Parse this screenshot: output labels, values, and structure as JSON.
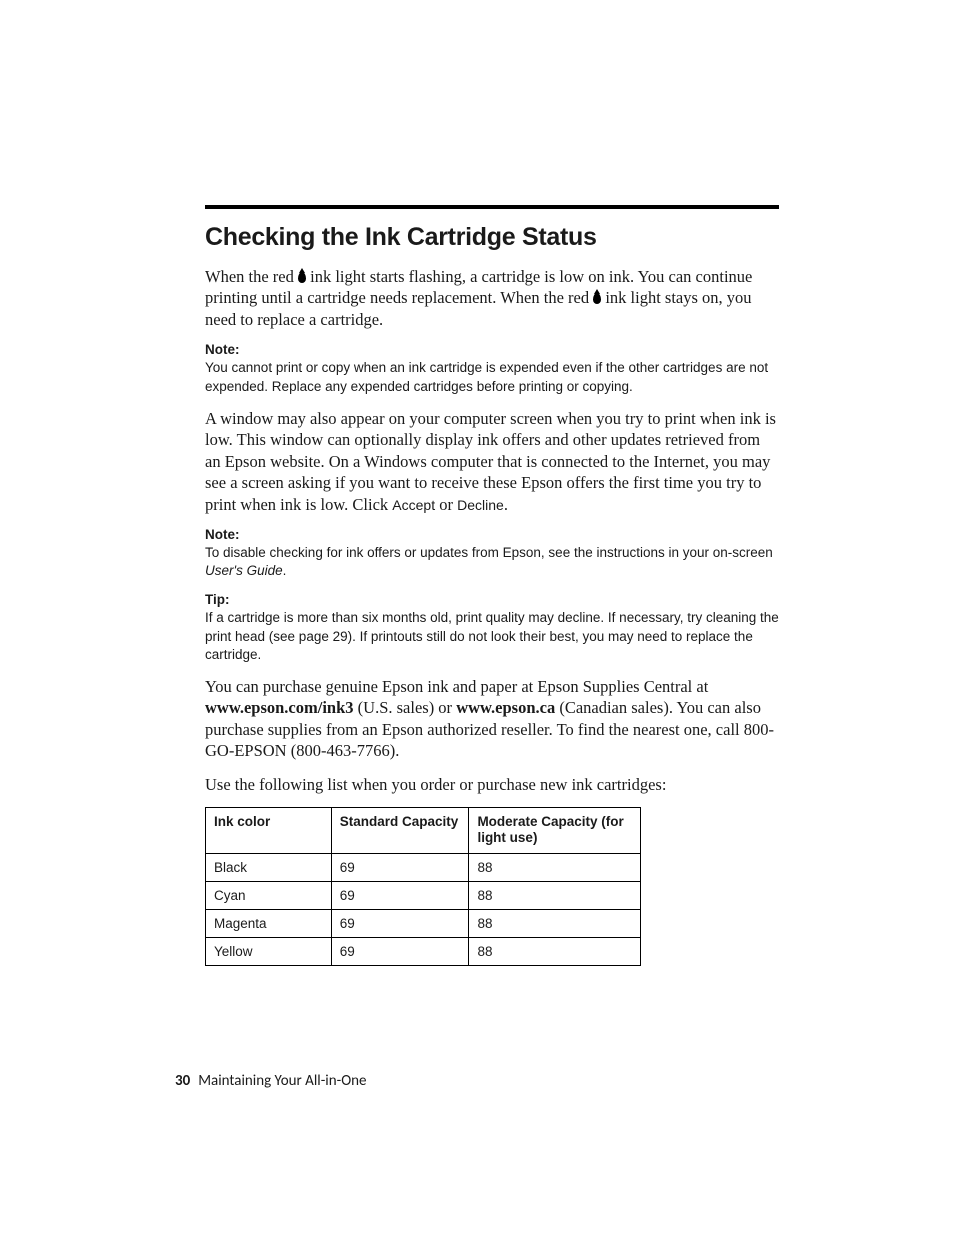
{
  "heading": "Checking the Ink Cartridge Status",
  "p1a": "When the red ",
  "p1b": " ink light starts flashing, a cartridge is low on ink. You can continue printing until a cartridge needs replacement. When the red ",
  "p1c": " ink light stays on, you need to replace a cartridge.",
  "note1_head": "Note:",
  "note1_body": "You cannot print or copy when an ink cartridge is expended even if the other cartridges are not expended. Replace any expended cartridges before printing or copying.",
  "p2a": "A window may also appear on your computer screen when you try to print when ink is low. This window can optionally display ink offers and other updates retrieved from an Epson website. On a Windows computer that is connected to the Internet, you may see a screen asking if you want to receive these Epson offers the first time you try to print when ink is low. Click ",
  "p2_accept": "Accept",
  "p2_or": " or ",
  "p2_decline": "Decline",
  "p2_end": ".",
  "note2_head": "Note:",
  "note2_body_a": "To disable checking for ink offers or updates from Epson, see the instructions in your on-screen ",
  "note2_body_guide": "User's Guide",
  "note2_body_b": ".",
  "tip_head": "Tip:",
  "tip_body": "If a cartridge is more than six months old, print quality may decline. If necessary, try cleaning the print head (see page 29). If printouts still do not look their best, you may need to replace the cartridge.",
  "p3a": "You can purchase genuine Epson ink and paper at Epson Supplies Central at ",
  "p3_link1": "www.epson.com/ink3",
  "p3b": " (U.S. sales) or ",
  "p3_link2": "www.epson.ca",
  "p3c": " (Canadian sales). You can also purchase supplies from an Epson authorized reseller. To find the nearest one, call 800-GO-EPSON (800-463-7766).",
  "p4": "Use the following list when you order or purchase new ink cartridges:",
  "table": {
    "columns": [
      "Ink color",
      "Standard Capacity",
      "Moderate Capacity (for light use)"
    ],
    "rows": [
      [
        "Black",
        "69",
        "88"
      ],
      [
        "Cyan",
        "69",
        "88"
      ],
      [
        "Magenta",
        "69",
        "88"
      ],
      [
        "Yellow",
        "69",
        "88"
      ]
    ],
    "col_widths": [
      "126px",
      "138px",
      "172px"
    ]
  },
  "footer": {
    "page": "30",
    "title": "Maintaining Your All-in-One"
  }
}
